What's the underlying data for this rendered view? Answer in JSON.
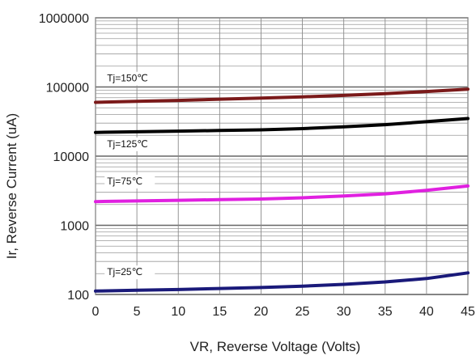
{
  "chart_data": {
    "type": "line",
    "xlabel": "VR, Reverse Voltage (Volts)",
    "ylabel": "Ir, Reverse Current (uA)",
    "xlim": [
      0,
      45
    ],
    "ylim": [
      100,
      1000000
    ],
    "yscale": "log",
    "xticks": [
      0,
      5,
      10,
      15,
      20,
      25,
      30,
      35,
      40,
      45
    ],
    "xtick_labels": [
      "0",
      "5",
      "10",
      "15",
      "20",
      "25",
      "30",
      "35",
      "40",
      "45"
    ],
    "yticks": [
      100,
      1000,
      10000,
      100000,
      1000000
    ],
    "ytick_labels": [
      "100",
      "1000",
      "10000",
      "100000",
      "1000000"
    ],
    "grid": true,
    "series": [
      {
        "name": "Tj=150℃",
        "color": "#7b1a1a",
        "x": [
          0,
          5,
          10,
          15,
          20,
          25,
          30,
          35,
          40,
          45
        ],
        "y": [
          60000,
          62000,
          64000,
          66500,
          69000,
          72000,
          75500,
          80000,
          86000,
          93000
        ]
      },
      {
        "name": "Tj=125℃",
        "color": "#000000",
        "x": [
          0,
          5,
          10,
          15,
          20,
          25,
          30,
          35,
          40,
          45
        ],
        "y": [
          22000,
          22500,
          23000,
          23500,
          24000,
          25000,
          26500,
          28500,
          31500,
          35000
        ]
      },
      {
        "name": "Tj=75℃",
        "color": "#e020e0",
        "x": [
          0,
          5,
          10,
          15,
          20,
          25,
          30,
          35,
          40,
          45
        ],
        "y": [
          2200,
          2250,
          2300,
          2350,
          2400,
          2500,
          2650,
          2850,
          3200,
          3700
        ]
      },
      {
        "name": "Tj=25℃",
        "color": "#1a1a7a",
        "x": [
          0,
          5,
          10,
          15,
          20,
          25,
          30,
          35,
          40,
          45
        ],
        "y": [
          112,
          115,
          118,
          122,
          126,
          132,
          140,
          152,
          170,
          205
        ]
      }
    ],
    "annotations": [
      {
        "text": "Tj=150℃",
        "x": 1,
        "y": 120000
      },
      {
        "text": "Tj=125℃",
        "x": 1,
        "y": 13500
      },
      {
        "text": "Tj=75℃",
        "x": 1,
        "y": 3900
      },
      {
        "text": "Tj=25℃",
        "x": 1,
        "y": 190
      }
    ]
  }
}
